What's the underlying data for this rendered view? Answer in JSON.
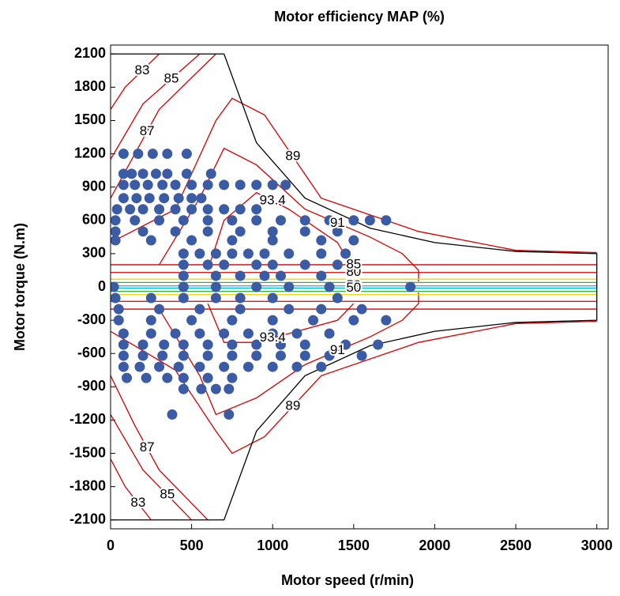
{
  "chart_data": {
    "type": "contour",
    "title": "Motor efficiency MAP (%)",
    "x_label": "Motor speed (r/min)",
    "y_label": "Motor torque (N.m)",
    "xlim": [
      0,
      3070
    ],
    "ylim": [
      -2180,
      2180
    ],
    "xticks": [
      0,
      500,
      1000,
      1500,
      2000,
      2500,
      3000
    ],
    "yticks": [
      -2100,
      -1800,
      -1500,
      -1200,
      -900,
      -600,
      -300,
      0,
      300,
      600,
      900,
      1200,
      1500,
      1800,
      2100
    ],
    "envelope": {
      "color": "#000000",
      "x": [
        0,
        700,
        900,
        1200,
        1600,
        2000,
        2500,
        3000,
        3000,
        2500,
        2000,
        1600,
        1200,
        900,
        700,
        0
      ],
      "y": [
        2100,
        2100,
        1300,
        800,
        530,
        400,
        320,
        300,
        -300,
        -320,
        -400,
        -530,
        -800,
        -1300,
        -2100,
        -2100
      ]
    },
    "contours": [
      {
        "label": "83",
        "color": "#d40000",
        "x": [
          0,
          90,
          300
        ],
        "y": [
          1600,
          1800,
          2100
        ]
      },
      {
        "label": "85",
        "color": "#d40000",
        "x": [
          0,
          200,
          550
        ],
        "y": [
          1150,
          1650,
          2100
        ]
      },
      {
        "label": "87",
        "color": "#d40000",
        "x": [
          0,
          150,
          300,
          650
        ],
        "y": [
          800,
          1200,
          1600,
          2100
        ]
      },
      {
        "label": "89",
        "color": "#d40000",
        "x": [
          0,
          400,
          650,
          750,
          950,
          1300,
          1900,
          2500,
          3000
        ],
        "y": [
          400,
          700,
          1500,
          1700,
          1550,
          800,
          500,
          330,
          310
        ]
      },
      {
        "label": "91",
        "color": "#d40000",
        "x": [
          300,
          550,
          700,
          900,
          1200,
          1600,
          1800,
          1900,
          1900
        ],
        "y": [
          200,
          800,
          1250,
          1100,
          700,
          450,
          300,
          150,
          50
        ]
      },
      {
        "label": "93.4",
        "color": "#d40000",
        "x": [
          600,
          700,
          900,
          1100,
          1400,
          1500
        ],
        "y": [
          150,
          600,
          850,
          700,
          400,
          150
        ]
      },
      {
        "label": "83",
        "color": "#d40000",
        "x": [
          0,
          90,
          250
        ],
        "y": [
          -1550,
          -1800,
          -2100
        ]
      },
      {
        "label": "85",
        "color": "#d40000",
        "x": [
          0,
          200,
          500
        ],
        "y": [
          -1150,
          -1650,
          -2100
        ]
      },
      {
        "label": "87",
        "color": "#d40000",
        "x": [
          0,
          150,
          300,
          600
        ],
        "y": [
          -800,
          -1250,
          -1650,
          -2100
        ]
      },
      {
        "label": "89",
        "color": "#d40000",
        "x": [
          0,
          400,
          650,
          750,
          950,
          1300,
          1900,
          2500,
          3000
        ],
        "y": [
          -400,
          -750,
          -1300,
          -1500,
          -1350,
          -800,
          -500,
          -330,
          -310
        ]
      },
      {
        "label": "91",
        "color": "#d40000",
        "x": [
          300,
          550,
          650,
          900,
          1200,
          1600,
          1800,
          1900,
          1900
        ],
        "y": [
          -200,
          -800,
          -1150,
          -1000,
          -700,
          -450,
          -300,
          -150,
          -50
        ]
      },
      {
        "label": "93.4",
        "color": "#d40000",
        "x": [
          600,
          700,
          900,
          1100,
          1400,
          1500
        ],
        "y": [
          -150,
          -500,
          -500,
          -420,
          -300,
          -150
        ]
      },
      {
        "label": "80",
        "color": "#d40000",
        "x": [
          0,
          3000
        ],
        "y": [
          130,
          130
        ]
      },
      {
        "color": "#d40000",
        "x": [
          0,
          3000
        ],
        "y": [
          -130,
          -130
        ]
      },
      {
        "label": "85",
        "color": "#d40000",
        "x": [
          0,
          3000
        ],
        "y": [
          200,
          200
        ]
      },
      {
        "color": "#d40000",
        "x": [
          0,
          3000
        ],
        "y": [
          -200,
          -200
        ]
      },
      {
        "color": "#e8d800",
        "x": [
          0,
          3000
        ],
        "y": [
          70,
          70
        ]
      },
      {
        "color": "#e8d800",
        "x": [
          0,
          3000
        ],
        "y": [
          -70,
          -70
        ]
      },
      {
        "color": "#30b040",
        "x": [
          0,
          3000
        ],
        "y": [
          40,
          40
        ]
      },
      {
        "color": "#30b040",
        "x": [
          0,
          3000
        ],
        "y": [
          -40,
          -40
        ]
      },
      {
        "label": "50",
        "color": "#00b8e0",
        "x": [
          0,
          3000
        ],
        "y": [
          10,
          10
        ]
      },
      {
        "label": "50",
        "color": "#00b8e0",
        "x": [
          0,
          3000
        ],
        "y": [
          -10,
          -10
        ]
      }
    ],
    "points": {
      "color": "#3b5ba5",
      "x": [
        80,
        170,
        260,
        350,
        470,
        80,
        130,
        200,
        280,
        350,
        470,
        620,
        80,
        150,
        230,
        320,
        400,
        500,
        600,
        700,
        800,
        900,
        1000,
        1080,
        80,
        160,
        240,
        330,
        420,
        500,
        560,
        40,
        120,
        200,
        300,
        400,
        500,
        600,
        700,
        800,
        900,
        30,
        150,
        300,
        450,
        600,
        750,
        900,
        1050,
        1200,
        1350,
        1500,
        1600,
        1700,
        30,
        200,
        400,
        600,
        800,
        1000,
        1200,
        1400,
        30,
        250,
        500,
        750,
        1000,
        1300,
        1500,
        450,
        550,
        650,
        750,
        850,
        950,
        1100,
        1300,
        1450,
        450,
        600,
        700,
        900,
        1000,
        1200,
        1400,
        450,
        650,
        800,
        950,
        1050,
        1300,
        20,
        450,
        650,
        900,
        1100,
        1350,
        1500,
        1850,
        30,
        250,
        450,
        650,
        800,
        1000,
        1400,
        50,
        300,
        550,
        800,
        1100,
        1300,
        1550,
        50,
        250,
        500,
        750,
        1000,
        1250,
        1500,
        1700,
        80,
        250,
        400,
        550,
        700,
        850,
        1000,
        1150,
        1350,
        80,
        200,
        330,
        450,
        600,
        750,
        900,
        1050,
        1200,
        1450,
        1650,
        80,
        200,
        320,
        450,
        600,
        750,
        900,
        1050,
        1200,
        1350,
        1550,
        80,
        180,
        300,
        420,
        550,
        700,
        850,
        1000,
        1150,
        1300,
        100,
        220,
        350,
        450,
        600,
        750,
        450,
        560,
        650,
        730,
        380,
        730
      ],
      "values": [
        1200,
        1200,
        1200,
        1200,
        1200,
        1020,
        1020,
        1020,
        1020,
        1020,
        1020,
        1020,
        920,
        920,
        920,
        920,
        920,
        920,
        920,
        920,
        920,
        920,
        920,
        920,
        800,
        800,
        800,
        800,
        800,
        800,
        800,
        700,
        700,
        700,
        700,
        700,
        700,
        700,
        700,
        700,
        700,
        600,
        600,
        600,
        600,
        600,
        600,
        600,
        600,
        600,
        600,
        600,
        600,
        600,
        500,
        500,
        500,
        500,
        500,
        500,
        500,
        500,
        420,
        420,
        420,
        420,
        420,
        420,
        420,
        300,
        300,
        300,
        300,
        300,
        300,
        300,
        300,
        300,
        200,
        200,
        200,
        200,
        200,
        200,
        200,
        100,
        100,
        100,
        100,
        100,
        100,
        0,
        0,
        0,
        0,
        0,
        0,
        0,
        0,
        -100,
        -100,
        -100,
        -100,
        -100,
        -100,
        -100,
        -200,
        -200,
        -200,
        -200,
        -200,
        -200,
        -200,
        -300,
        -300,
        -300,
        -300,
        -300,
        -300,
        -300,
        -300,
        -420,
        -420,
        -420,
        -420,
        -420,
        -420,
        -420,
        -420,
        -420,
        -520,
        -520,
        -520,
        -520,
        -520,
        -520,
        -520,
        -520,
        -520,
        -520,
        -520,
        -620,
        -620,
        -620,
        -620,
        -620,
        -620,
        -620,
        -620,
        -620,
        -620,
        -620,
        -720,
        -720,
        -720,
        -720,
        -720,
        -720,
        -720,
        -720,
        -720,
        -720,
        -820,
        -820,
        -820,
        -820,
        -820,
        -820,
        -920,
        -920,
        -920,
        -920,
        -1150,
        -1150
      ]
    }
  }
}
